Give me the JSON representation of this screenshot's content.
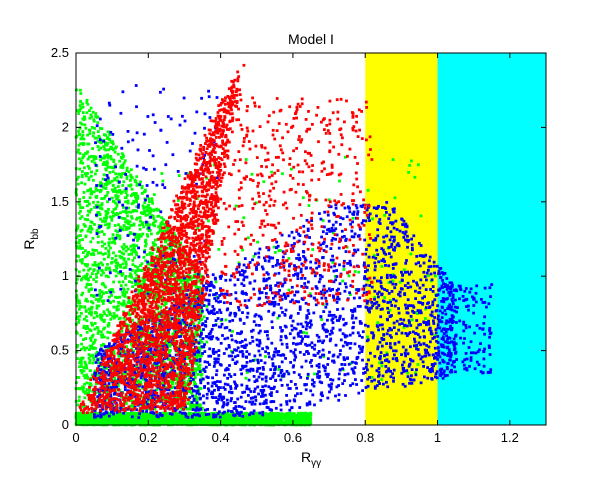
{
  "chart_data": {
    "type": "scatter",
    "title": "Model I",
    "xlabel": {
      "main": "R",
      "sub": "γγ"
    },
    "ylabel": {
      "main": "R",
      "sub": "bb"
    },
    "xlim": [
      0,
      1.3
    ],
    "ylim": [
      0,
      2.5
    ],
    "x_ticks": [
      0,
      0.2,
      0.4,
      0.6,
      0.8,
      1,
      1.2
    ],
    "x_tick_labels": [
      "0",
      "0.2",
      "0.4",
      "0.6",
      "0.8",
      "1",
      "1.2"
    ],
    "y_ticks": [
      0,
      0.5,
      1,
      1.5,
      2,
      2.5
    ],
    "y_tick_labels": [
      "0",
      "0.5",
      "1",
      "1.5",
      "2",
      "2.5"
    ],
    "grid": false,
    "bands": [
      {
        "x_from": 0.8,
        "x_to": 1.0,
        "color": "#ffff00"
      },
      {
        "x_from": 1.0,
        "x_to": 1.3,
        "color": "#00ffff"
      }
    ],
    "series": [
      {
        "color": "#00ff00",
        "regions": [
          {
            "kind": "blob",
            "x_range": [
              0,
              0.35
            ],
            "y_range": [
              0.1,
              2.3
            ],
            "density": "high"
          },
          {
            "kind": "floor",
            "x_range": [
              0,
              0.65
            ],
            "y_range": [
              0,
              0.08
            ],
            "density": "high"
          },
          {
            "kind": "sparse",
            "x_range": [
              0.2,
              1.0
            ],
            "y_range": [
              0.3,
              1.8
            ],
            "density": "low"
          }
        ]
      },
      {
        "color": "#0000ff",
        "regions": [
          {
            "kind": "wedge",
            "x_range": [
              0.05,
              1.05
            ],
            "y_range": [
              0.05,
              1.5
            ],
            "density": "high"
          },
          {
            "kind": "outliers",
            "x_range": [
              1.0,
              1.15
            ],
            "y_range": [
              0.35,
              0.95
            ],
            "density": "low"
          },
          {
            "kind": "upper",
            "x_range": [
              0.05,
              0.4
            ],
            "y_range": [
              0.8,
              2.3
            ],
            "density": "low"
          }
        ]
      },
      {
        "color": "#ff0000",
        "regions": [
          {
            "kind": "fan",
            "apex": [
              0.46,
              2.45
            ],
            "base": [
              0.01,
              0.1
            ],
            "base_end": [
              0.3,
              0.1
            ],
            "density": "high"
          },
          {
            "kind": "tail",
            "x_range": [
              0.4,
              0.82
            ],
            "y_range": [
              0.8,
              2.2
            ],
            "density": "medium"
          }
        ]
      }
    ]
  }
}
